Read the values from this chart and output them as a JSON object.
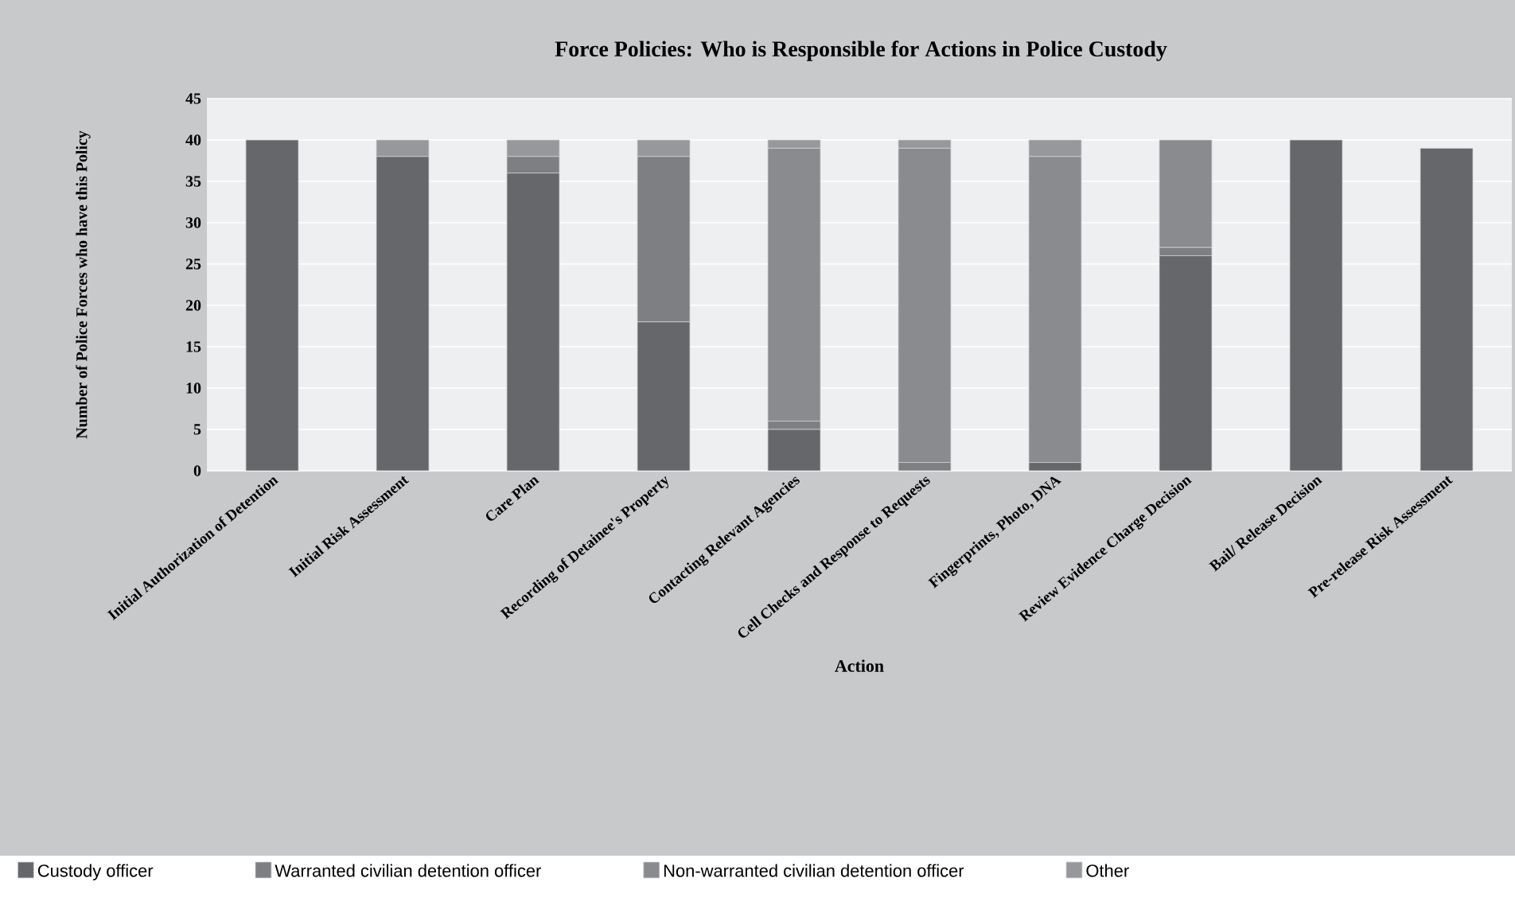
{
  "chart_data": {
    "type": "bar",
    "stacked": true,
    "title": "Force Policies: Who is Responsible for Actions in Police Custody",
    "xlabel": "Action",
    "ylabel": "Number of Police Forces who have this Policy",
    "categories": [
      "Initial Authorization of Detention",
      "Initial Risk Assessment",
      "Care Plan",
      "Recording of Detainee's Property",
      "Contacting Relevant Agencies",
      "Cell Checks and Response to Requests",
      "Fingerprints, Photo, DNA",
      "Review Evidence Charge Decision",
      "Bail/ Release Decision",
      "Pre-release Risk Assessment"
    ],
    "series": [
      {
        "name": "Custody officer",
        "color": "#66676b",
        "values": [
          40,
          38,
          36,
          18,
          5,
          0,
          1,
          26,
          40,
          39
        ]
      },
      {
        "name": "Warranted civilian detention officer",
        "color": "#7e7f83",
        "values": [
          0,
          0,
          2,
          20,
          1,
          1,
          0,
          1,
          0,
          0
        ]
      },
      {
        "name": "Non-warranted civilian detention officer",
        "color": "#8a8b8e",
        "values": [
          0,
          0,
          0,
          0,
          33,
          38,
          37,
          13,
          0,
          0
        ]
      },
      {
        "name": "Other",
        "color": "#97989b",
        "values": [
          0,
          2,
          2,
          2,
          1,
          1,
          2,
          0,
          0,
          0
        ]
      }
    ],
    "ylim": [
      0,
      45
    ],
    "yticks": [
      0,
      5,
      10,
      15,
      20,
      25,
      30,
      35,
      40,
      45
    ],
    "grid": "y",
    "legend": "bottom"
  }
}
